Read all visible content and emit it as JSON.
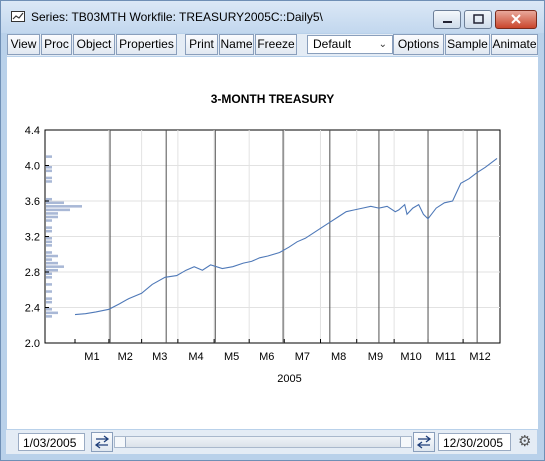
{
  "window": {
    "title": "Series: TB03MTH   Workfile: TREASURY2005C::Daily5\\"
  },
  "toolbar": {
    "buttons": [
      "View",
      "Proc",
      "Object",
      "Properties",
      "Print",
      "Name",
      "Freeze",
      "Options",
      "Sample",
      "Animate"
    ],
    "freq_select": "Default"
  },
  "statusbar": {
    "start_date": "1/03/2005",
    "end_date": "12/30/2005"
  },
  "colors": {
    "series_line": "#4f79b8",
    "histogram": "#a9b8d6",
    "month_lines": "#505050",
    "grid": "#e2e2e2"
  },
  "chart_data": {
    "type": "line",
    "title": "3-MONTH TREASURY",
    "xlabel": "2005",
    "ylabel": "",
    "ylim": [
      2.0,
      4.4
    ],
    "yticks": [
      "2.0",
      "2.4",
      "2.8",
      "3.2",
      "3.6",
      "4.0",
      "4.4"
    ],
    "xticks": [
      "M1",
      "M2",
      "M3",
      "M4",
      "M5",
      "M6",
      "M7",
      "M8",
      "M9",
      "M10",
      "M11",
      "M12"
    ],
    "x_range": [
      "2005-01-03",
      "2005-12-30"
    ],
    "grid": true,
    "vertical_event_lines": [
      "2005-02-02",
      "2005-03-22",
      "2005-05-03",
      "2005-06-30",
      "2005-08-09",
      "2005-09-20",
      "2005-11-01",
      "2005-12-13"
    ],
    "series": [
      {
        "values": [
          [
            "2005-01-03",
            2.32
          ],
          [
            "2005-01-12",
            2.33
          ],
          [
            "2005-01-21",
            2.35
          ],
          [
            "2005-02-01",
            2.38
          ],
          [
            "2005-02-10",
            2.44
          ],
          [
            "2005-02-18",
            2.5
          ],
          [
            "2005-03-01",
            2.56
          ],
          [
            "2005-03-10",
            2.66
          ],
          [
            "2005-03-21",
            2.74
          ],
          [
            "2005-03-31",
            2.76
          ],
          [
            "2005-04-08",
            2.82
          ],
          [
            "2005-04-15",
            2.86
          ],
          [
            "2005-04-22",
            2.82
          ],
          [
            "2005-04-29",
            2.88
          ],
          [
            "2005-05-09",
            2.84
          ],
          [
            "2005-05-18",
            2.86
          ],
          [
            "2005-05-27",
            2.9
          ],
          [
            "2005-06-03",
            2.92
          ],
          [
            "2005-06-10",
            2.96
          ],
          [
            "2005-06-17",
            2.98
          ],
          [
            "2005-06-27",
            3.02
          ],
          [
            "2005-07-05",
            3.08
          ],
          [
            "2005-07-12",
            3.14
          ],
          [
            "2005-07-19",
            3.18
          ],
          [
            "2005-07-26",
            3.24
          ],
          [
            "2005-08-02",
            3.3
          ],
          [
            "2005-08-09",
            3.36
          ],
          [
            "2005-08-16",
            3.42
          ],
          [
            "2005-08-23",
            3.48
          ],
          [
            "2005-08-30",
            3.5
          ],
          [
            "2005-09-06",
            3.52
          ],
          [
            "2005-09-13",
            3.54
          ],
          [
            "2005-09-20",
            3.52
          ],
          [
            "2005-09-27",
            3.54
          ],
          [
            "2005-10-04",
            3.48
          ],
          [
            "2005-10-07",
            3.5
          ],
          [
            "2005-10-12",
            3.56
          ],
          [
            "2005-10-14",
            3.45
          ],
          [
            "2005-10-19",
            3.52
          ],
          [
            "2005-10-24",
            3.56
          ],
          [
            "2005-10-28",
            3.45
          ],
          [
            "2005-11-01",
            3.4
          ],
          [
            "2005-11-08",
            3.52
          ],
          [
            "2005-11-15",
            3.58
          ],
          [
            "2005-11-22",
            3.6
          ],
          [
            "2005-11-29",
            3.8
          ],
          [
            "2005-12-06",
            3.85
          ],
          [
            "2005-12-13",
            3.92
          ],
          [
            "2005-12-20",
            3.98
          ],
          [
            "2005-12-30",
            4.08
          ]
        ]
      }
    ]
  }
}
